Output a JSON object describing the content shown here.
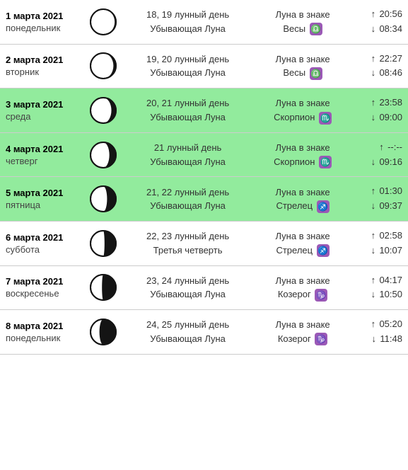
{
  "colors": {
    "highlight_bg": "#92eb9d",
    "border": "#cccccc",
    "text": "#333333",
    "background": "#ffffff",
    "emoji_bg": "#9b59b6",
    "moon_stroke": "#141414",
    "moon_dark": "#141414",
    "moon_light": "#ffffff"
  },
  "rows": [
    {
      "date": "1 марта 2021",
      "dow": "понедельник",
      "moon_phase": 0.95,
      "lunar_day": "18, 19 лунный день",
      "lunar_name": "Убывающая Луна",
      "sign_label": "Луна в знаке",
      "sign": "Весы",
      "sign_glyph": "♎",
      "rise": "20:56",
      "set": "08:34",
      "highlight": false
    },
    {
      "date": "2 марта 2021",
      "dow": "вторник",
      "moon_phase": 0.9,
      "lunar_day": "19, 20 лунный день",
      "lunar_name": "Убывающая Луна",
      "sign_label": "Луна в знаке",
      "sign": "Весы",
      "sign_glyph": "♎",
      "rise": "22:27",
      "set": "08:46",
      "highlight": false
    },
    {
      "date": "3 марта 2021",
      "dow": "среда",
      "moon_phase": 0.82,
      "lunar_day": "20, 21 лунный день",
      "lunar_name": "Убывающая Луна",
      "sign_label": "Луна в знаке",
      "sign": "Скорпион",
      "sign_glyph": "♏",
      "rise": "23:58",
      "set": "09:00",
      "highlight": true
    },
    {
      "date": "4 марта 2021",
      "dow": "четверг",
      "moon_phase": 0.74,
      "lunar_day": "21 лунный день",
      "lunar_name": "Убывающая Луна",
      "sign_label": "Луна в знаке",
      "sign": "Скорпион",
      "sign_glyph": "♏",
      "rise": "--:--",
      "set": "09:16",
      "highlight": true
    },
    {
      "date": "5 марта 2021",
      "dow": "пятница",
      "moon_phase": 0.65,
      "lunar_day": "21, 22 лунный день",
      "lunar_name": "Убывающая Луна",
      "sign_label": "Луна в знаке",
      "sign": "Стрелец",
      "sign_glyph": "♐",
      "rise": "01:30",
      "set": "09:37",
      "highlight": true
    },
    {
      "date": "6 марта 2021",
      "dow": "суббота",
      "moon_phase": 0.55,
      "lunar_day": "22, 23 лунный день",
      "lunar_name": "Третья четверть",
      "sign_label": "Луна в знаке",
      "sign": "Стрелец",
      "sign_glyph": "♐",
      "rise": "02:58",
      "set": "10:07",
      "highlight": false
    },
    {
      "date": "7 марта 2021",
      "dow": "воскресенье",
      "moon_phase": 0.45,
      "lunar_day": "23, 24 лунный день",
      "lunar_name": "Убывающая Луна",
      "sign_label": "Луна в знаке",
      "sign": "Козерог",
      "sign_glyph": "♑",
      "rise": "04:17",
      "set": "10:50",
      "highlight": false
    },
    {
      "date": "8 марта 2021",
      "dow": "понедельник",
      "moon_phase": 0.35,
      "lunar_day": "24, 25 лунный день",
      "lunar_name": "Убывающая Луна",
      "sign_label": "Луна в знаке",
      "sign": "Козерог",
      "sign_glyph": "♑",
      "rise": "05:20",
      "set": "11:48",
      "highlight": false
    }
  ]
}
